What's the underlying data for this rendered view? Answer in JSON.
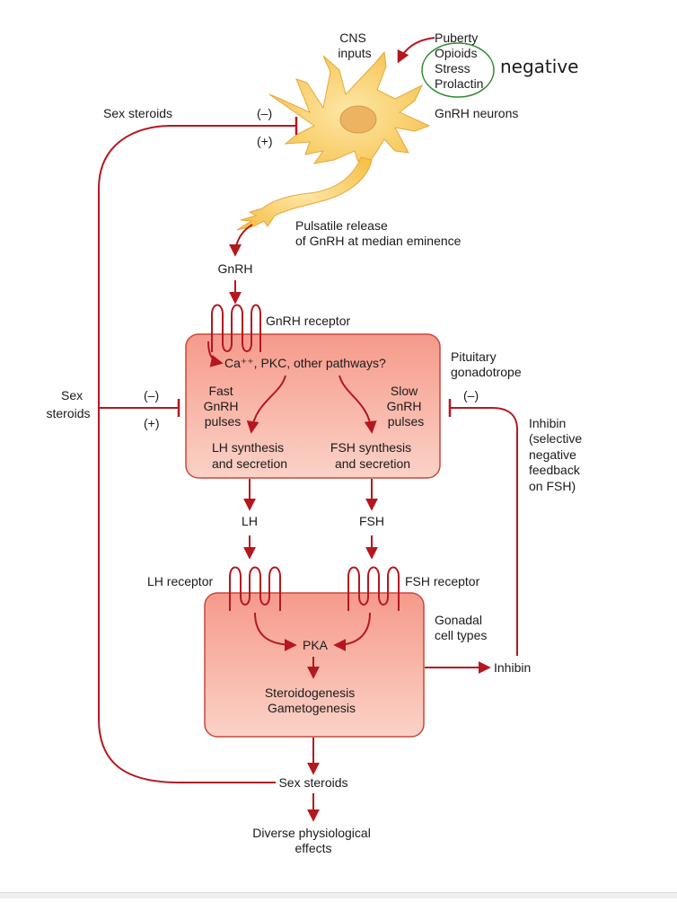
{
  "colors": {
    "arrow": "#b5171f",
    "box_fill_top": "#f7a596",
    "box_fill_bottom": "#f9c9bd",
    "box_stroke": "#c9473a",
    "neuron_body": "#f9d06a",
    "neuron_nucleus": "#e9ae5c",
    "annotation_circle": "#2f8a2f"
  },
  "neuron": {
    "cns_line1": "CNS",
    "cns_line2": "inputs",
    "inputs": [
      "Puberty",
      "Opioids",
      "Stress",
      "Prolactin"
    ],
    "annotation": "negative",
    "label": "GnRH neurons",
    "release_line1": "Pulsatile release",
    "release_line2": "of GnRH at median eminence"
  },
  "top_feedback": {
    "label": "Sex steroids",
    "minus": "(–)",
    "plus": "(+)"
  },
  "gnrh": {
    "hormone": "GnRH",
    "receptor": "GnRH receptor"
  },
  "pituitary": {
    "pathways": "Ca⁺⁺, PKC, other pathways?",
    "cell_line1": "Pituitary",
    "cell_line2": "gonadotrope",
    "fast": [
      "Fast",
      "GnRH",
      "pulses"
    ],
    "slow": [
      "Slow",
      "GnRH",
      "pulses"
    ],
    "lh_line1": "LH synthesis",
    "lh_line2": "and secretion",
    "fsh_line1": "FSH synthesis",
    "fsh_line2": "and secretion"
  },
  "mid_feedback": {
    "label_line1": "Sex",
    "label_line2": "steroids",
    "minus": "(–)",
    "plus": "(+)"
  },
  "inhibin_feedback": {
    "minus": "(–)",
    "lines": [
      "Inhibin",
      "(selective",
      "negative",
      "feedback",
      "on FSH)"
    ]
  },
  "hormones": {
    "lh": "LH",
    "fsh": "FSH"
  },
  "gonad": {
    "lh_receptor": "LH receptor",
    "fsh_receptor": "FSH receptor",
    "cell_line1": "Gonadal",
    "cell_line2": "cell types",
    "pka": "PKA",
    "out_line1": "Steroidogenesis",
    "out_line2": "Gametogenesis",
    "inhibin": "Inhibin"
  },
  "output": {
    "sex_steroids": "Sex steroids",
    "effects_line1": "Diverse physiological",
    "effects_line2": "effects"
  }
}
